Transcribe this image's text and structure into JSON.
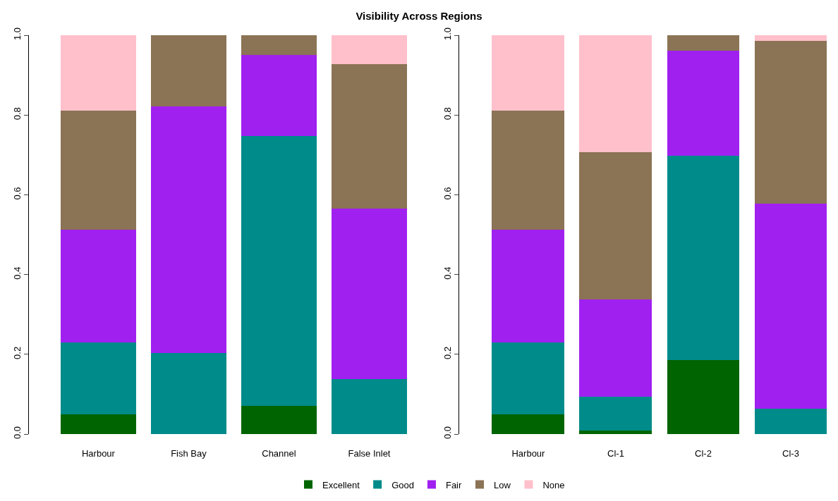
{
  "chart_data": [
    {
      "type": "bar",
      "title": "Visibility Across Regions",
      "stacked": true,
      "legend": "bottom",
      "grid": false,
      "categories": [
        "Harbour",
        "Fish Bay",
        "Channel",
        "False Inlet"
      ],
      "ylim": [
        0,
        1
      ],
      "yticks": [
        {
          "value": 0,
          "label": "0.0"
        },
        {
          "value": 0.2,
          "label": "0.2"
        },
        {
          "value": 0.4,
          "label": "0.4"
        },
        {
          "value": 0.6,
          "label": "0.6"
        },
        {
          "value": 0.8,
          "label": "0.8"
        },
        {
          "value": 1,
          "label": "1.0"
        }
      ],
      "series": [
        {
          "name": "Excellent",
          "color": "#006400",
          "values": [
            0.05,
            0,
            0.07,
            0
          ]
        },
        {
          "name": "Good",
          "color": "#008b8b",
          "values": [
            0.18,
            0.204,
            0.678,
            0.137
          ]
        },
        {
          "name": "Fair",
          "color": "#a020f0",
          "values": [
            0.283,
            0.618,
            0.202,
            0.428
          ]
        },
        {
          "name": "Low",
          "color": "#8b7355",
          "values": [
            0.298,
            0.178,
            0.05,
            0.363
          ]
        },
        {
          "name": "None",
          "color": "#ffc0cb",
          "values": [
            0.189,
            0,
            0,
            0.072
          ]
        }
      ]
    },
    {
      "type": "bar",
      "stacked": true,
      "grid": false,
      "categories": [
        "Harbour",
        "Cl-1",
        "Cl-2",
        "Cl-3"
      ],
      "ylim": [
        0,
        1
      ],
      "yticks": [
        {
          "value": 0,
          "label": "0.0"
        },
        {
          "value": 0.2,
          "label": "0.2"
        },
        {
          "value": 0.4,
          "label": "0.4"
        },
        {
          "value": 0.6,
          "label": "0.6"
        },
        {
          "value": 0.8,
          "label": "0.8"
        },
        {
          "value": 1,
          "label": "1.0"
        }
      ],
      "series": [
        {
          "color": "#006400",
          "values": [
            0.05,
            0.009,
            0.185,
            0
          ]
        },
        {
          "color": "#008b8b",
          "values": [
            0.18,
            0.084,
            0.513,
            0.063
          ]
        },
        {
          "color": "#a020f0",
          "values": [
            0.283,
            0.244,
            0.263,
            0.515
          ]
        },
        {
          "color": "#8b7355",
          "values": [
            0.298,
            0.37,
            0.039,
            0.407
          ]
        },
        {
          "color": "#ffc0cb",
          "values": [
            0.189,
            0.293,
            0,
            0.015
          ]
        }
      ]
    }
  ]
}
